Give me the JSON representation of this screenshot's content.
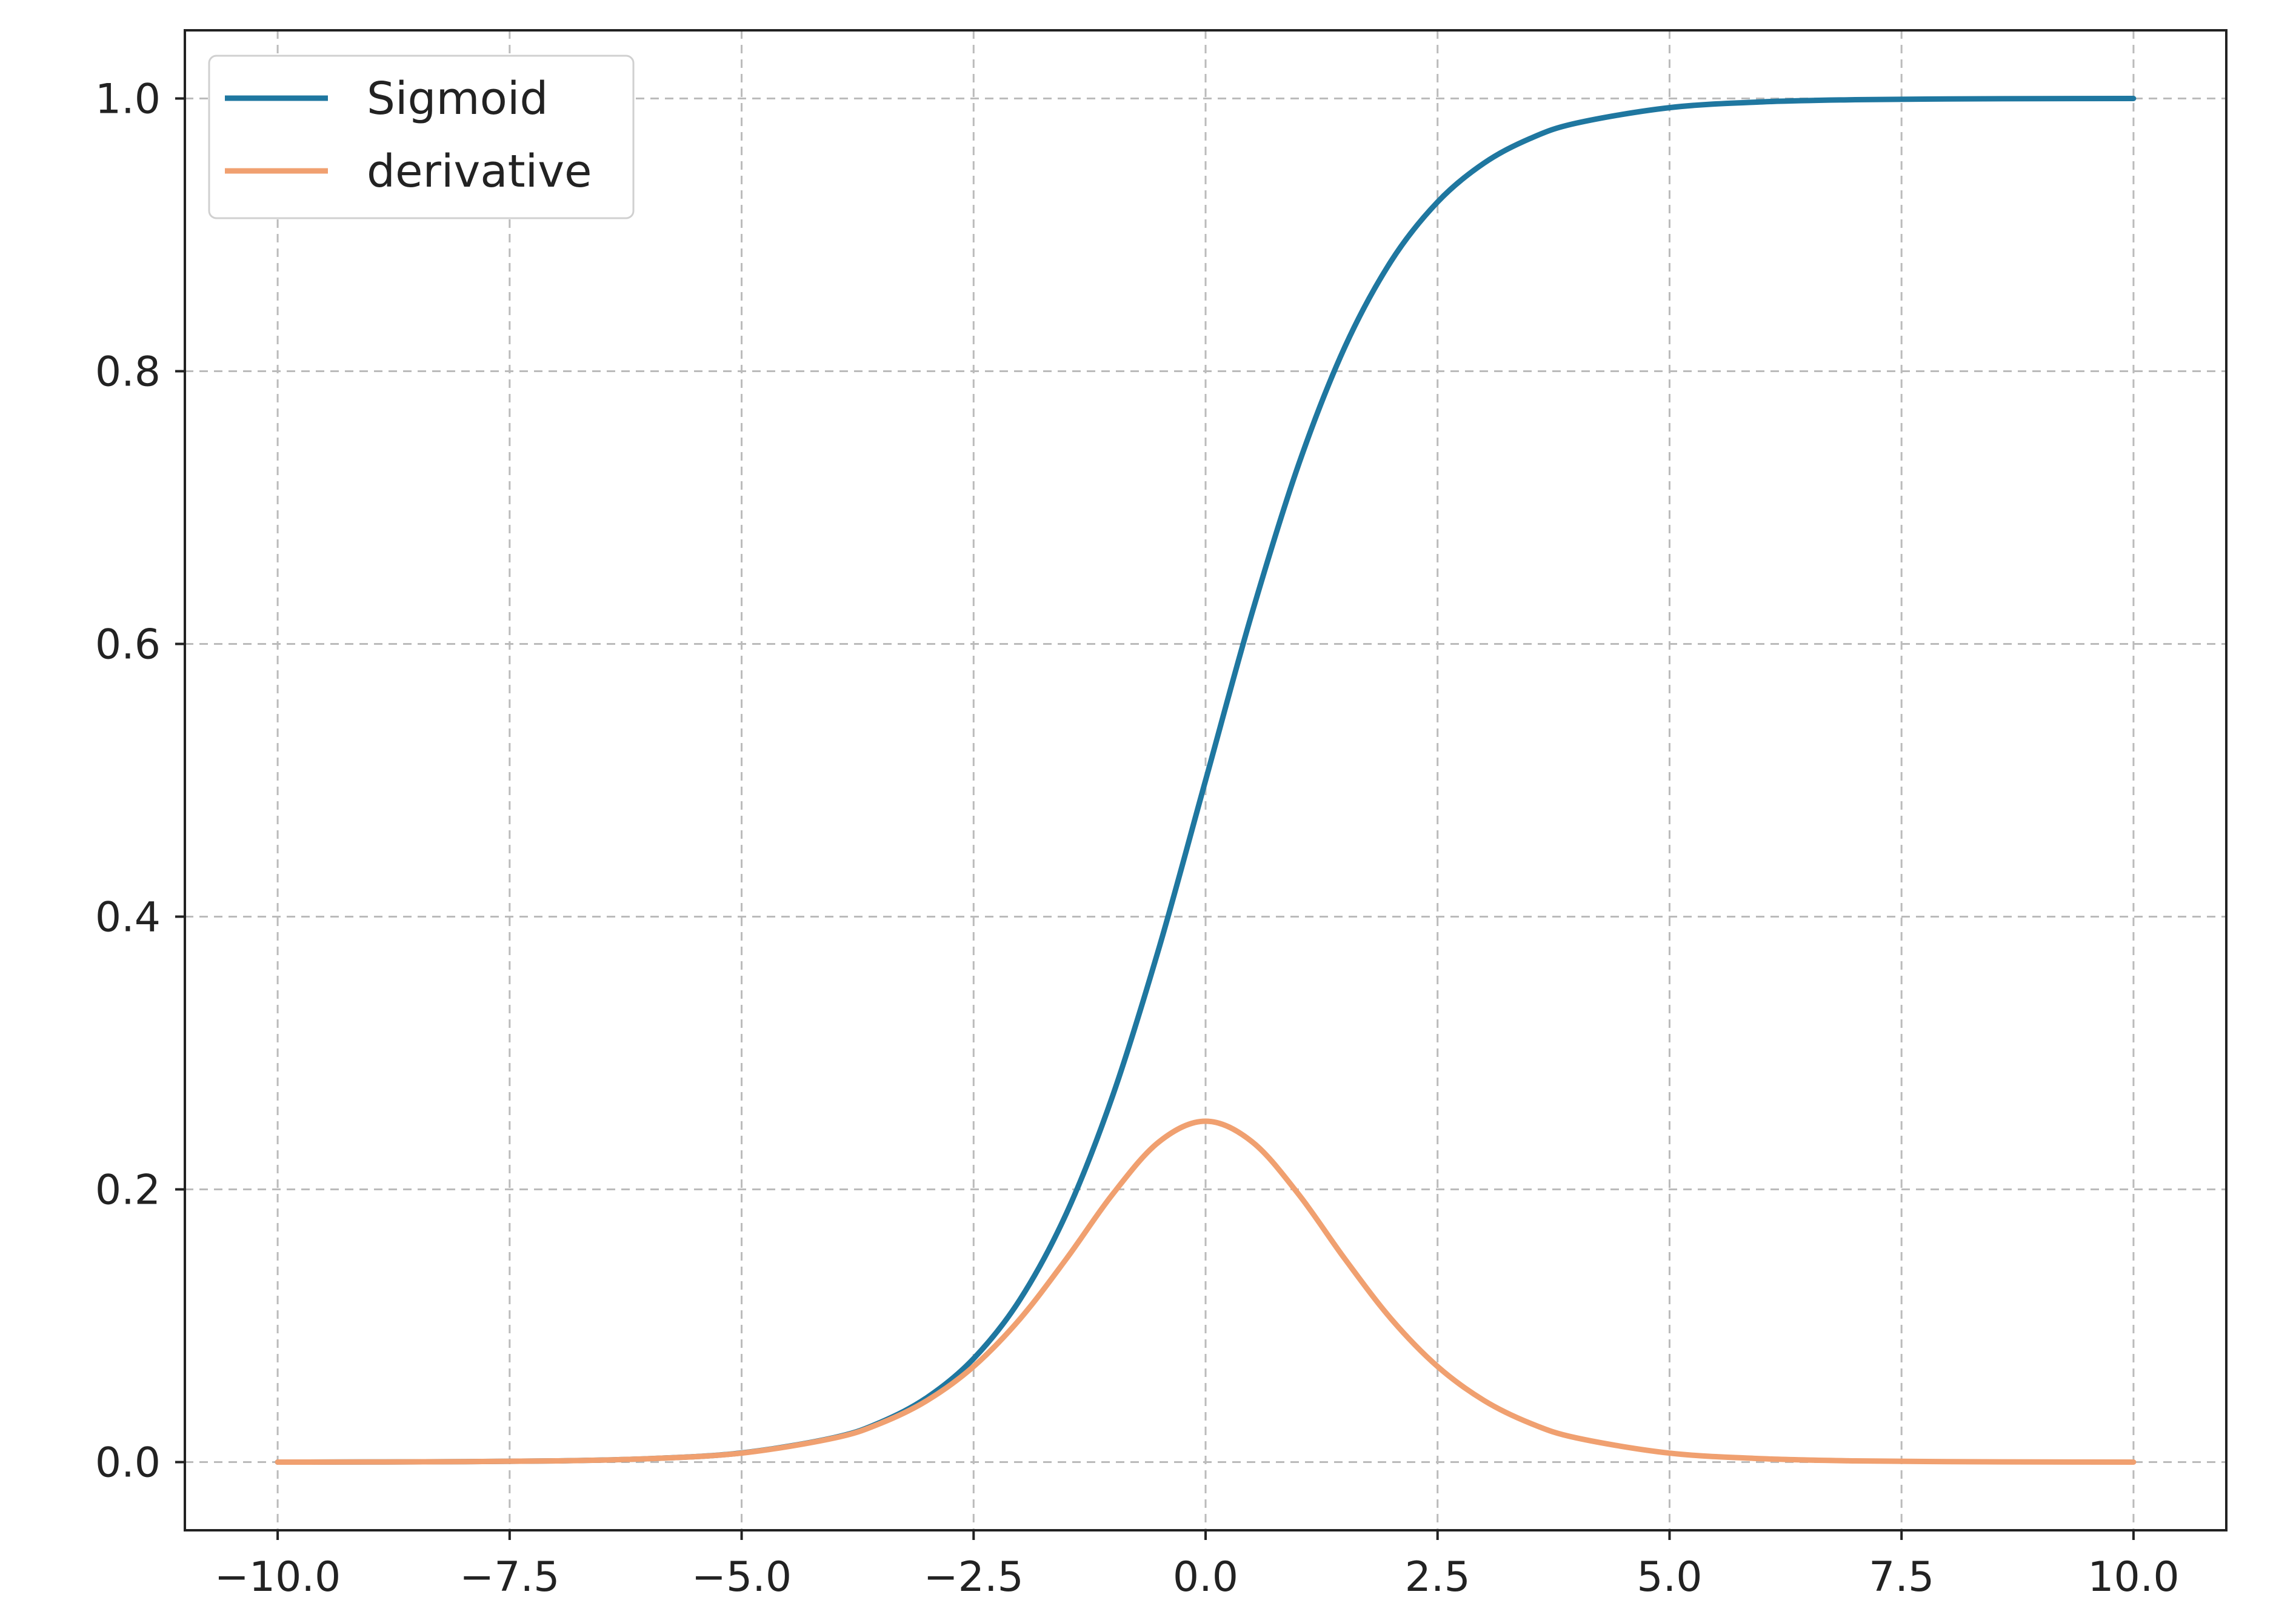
{
  "chart_data": {
    "type": "line",
    "title": "",
    "xlabel": "",
    "ylabel": "",
    "xlim": [
      -11.0,
      11.0
    ],
    "ylim": [
      -0.05,
      1.05
    ],
    "grid": true,
    "legend_position": "top-left",
    "x_ticks": [
      -10.0,
      -7.5,
      -5.0,
      -2.5,
      0.0,
      2.5,
      5.0,
      7.5,
      10.0
    ],
    "x_tick_labels": [
      "−10.0",
      "−7.5",
      "−5.0",
      "−2.5",
      "0.0",
      "2.5",
      "5.0",
      "7.5",
      "10.0"
    ],
    "y_ticks": [
      0.0,
      0.2,
      0.4,
      0.6,
      0.8,
      1.0
    ],
    "y_tick_labels": [
      "0.0",
      "0.2",
      "0.4",
      "0.6",
      "0.8",
      "1.0"
    ],
    "x": [
      -10,
      -9,
      -8,
      -7,
      -6,
      -5,
      -4,
      -3.5,
      -3,
      -2.5,
      -2,
      -1.5,
      -1,
      -0.5,
      0,
      0.5,
      1,
      1.5,
      2,
      2.5,
      3,
      3.5,
      4,
      5,
      6,
      7,
      8,
      9,
      10
    ],
    "series": [
      {
        "name": "Sigmoid",
        "color": "#1f77a0",
        "values": [
          0.0,
          0.0001,
          0.0003,
          0.0009,
          0.0025,
          0.0067,
          0.018,
          0.0293,
          0.0474,
          0.0759,
          0.1192,
          0.1824,
          0.2689,
          0.3775,
          0.5,
          0.6225,
          0.7311,
          0.8176,
          0.8808,
          0.9241,
          0.9526,
          0.9707,
          0.982,
          0.9933,
          0.9975,
          0.9991,
          0.9997,
          0.9999,
          1.0
        ]
      },
      {
        "name": "derivative",
        "color": "#f0a070",
        "values": [
          0.0,
          0.0001,
          0.0003,
          0.0009,
          0.0025,
          0.0066,
          0.0177,
          0.0285,
          0.0452,
          0.0701,
          0.105,
          0.1491,
          0.1966,
          0.235,
          0.25,
          0.235,
          0.1966,
          0.1491,
          0.105,
          0.0701,
          0.0452,
          0.0285,
          0.0177,
          0.0066,
          0.0025,
          0.0009,
          0.0003,
          0.0001,
          0.0
        ]
      }
    ]
  }
}
